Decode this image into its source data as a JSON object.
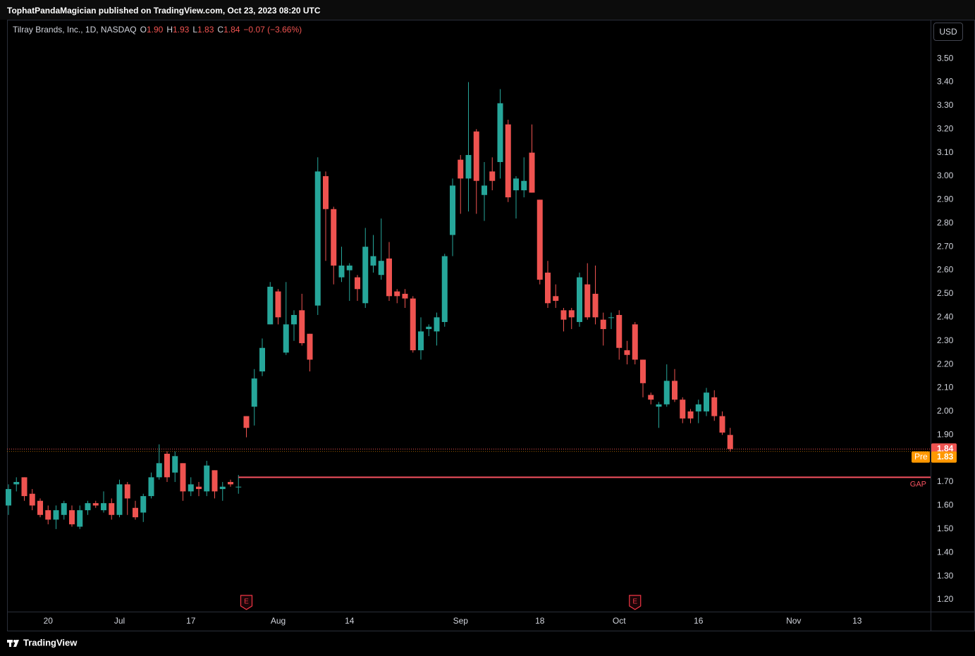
{
  "header": {
    "text": "TophatPandaMagician published on TradingView.com, Oct 23, 2023 08:20 UTC"
  },
  "footer": {
    "brand": "TradingView"
  },
  "chart_data": {
    "type": "candlestick",
    "title": "Tilray Brands, Inc., 1D, NASDAQ",
    "legend": [
      {
        "key": "O",
        "label": "1.90"
      },
      {
        "key": "H",
        "label": "1.93"
      },
      {
        "key": "L",
        "label": "1.83"
      },
      {
        "key": "C",
        "label": "1.84"
      }
    ],
    "change_label": "−0.07 (−3.66%)",
    "currency": "USD",
    "up_color": "#26a69a",
    "down_color": "#ef5350",
    "grid": false,
    "categories": [
      null,
      null,
      null,
      null,
      null,
      "20",
      null,
      null,
      null,
      null,
      null,
      null,
      null,
      null,
      "Jul",
      null,
      null,
      null,
      null,
      null,
      null,
      null,
      null,
      "17",
      null,
      null,
      null,
      null,
      null,
      null,
      null,
      null,
      null,
      null,
      "Aug",
      null,
      null,
      null,
      null,
      null,
      null,
      null,
      null,
      "14",
      null,
      null,
      null,
      null,
      null,
      null,
      null,
      null,
      null,
      null,
      null,
      null,
      null,
      "Sep",
      null,
      null,
      null,
      null,
      null,
      null,
      null,
      null,
      null,
      "18",
      null,
      null,
      null,
      null,
      null,
      null,
      null,
      null,
      null,
      "Oct",
      null,
      null,
      null,
      null,
      null,
      null,
      null,
      null,
      null,
      "16",
      null,
      null,
      null,
      null,
      null,
      null,
      null,
      null,
      null,
      null,
      null,
      "Nov",
      null,
      null,
      null,
      null,
      null,
      null,
      null,
      "13",
      null,
      null,
      null,
      null,
      null,
      null,
      null
    ],
    "open": [
      1.6,
      1.69,
      1.72,
      1.65,
      1.62,
      1.58,
      1.54,
      1.56,
      1.58,
      1.51,
      1.58,
      1.61,
      1.58,
      1.61,
      1.56,
      1.69,
      1.59,
      1.57,
      1.64,
      1.72,
      1.82,
      1.74,
      1.78,
      1.66,
      1.68,
      1.66,
      1.75,
      1.67,
      1.7,
      1.68,
      1.98,
      2.02,
      2.17,
      2.37,
      2.51,
      2.25,
      2.37,
      2.43,
      2.33,
      2.45,
      3.0,
      2.86,
      2.57,
      2.6,
      2.57,
      2.46,
      2.62,
      2.58,
      2.65,
      2.51,
      2.5,
      2.48,
      2.26,
      2.35,
      2.34,
      2.38,
      2.75,
      3.07,
      2.99,
      3.19,
      2.92,
      3.02,
      3.06,
      3.22,
      2.94,
      2.94,
      3.1,
      2.9,
      2.59,
      2.49,
      2.43,
      2.43,
      2.38,
      2.54,
      2.5,
      2.39,
      2.4,
      2.41,
      2.26,
      2.37,
      2.22,
      2.07,
      2.02,
      2.03,
      2.13,
      2.05,
      2.0,
      2.0,
      2.0,
      2.06,
      1.98,
      1.9,
      null,
      null,
      null,
      null,
      null,
      null,
      null,
      null,
      null,
      null,
      null,
      null,
      null,
      null,
      null,
      null,
      null,
      null,
      null,
      null,
      null,
      null,
      null
    ],
    "high": [
      1.69,
      1.72,
      1.72,
      1.67,
      1.63,
      1.6,
      1.6,
      1.62,
      1.6,
      1.6,
      1.62,
      1.62,
      1.66,
      1.63,
      1.71,
      1.7,
      1.62,
      1.65,
      1.74,
      1.86,
      1.83,
      1.83,
      1.78,
      1.72,
      1.7,
      1.79,
      1.75,
      1.7,
      1.71,
      1.73,
      1.98,
      2.18,
      2.31,
      2.55,
      2.52,
      2.55,
      2.43,
      2.5,
      2.33,
      3.08,
      3.02,
      2.87,
      2.7,
      2.63,
      2.58,
      2.78,
      2.75,
      2.82,
      2.72,
      2.52,
      2.52,
      2.49,
      2.4,
      2.37,
      2.42,
      2.67,
      2.99,
      3.09,
      3.4,
      3.2,
      3.06,
      3.08,
      3.37,
      3.24,
      3.0,
      3.08,
      3.22,
      2.9,
      2.64,
      2.54,
      2.44,
      2.44,
      2.59,
      2.63,
      2.62,
      2.42,
      2.42,
      2.43,
      2.3,
      2.38,
      2.22,
      2.08,
      2.04,
      2.2,
      2.18,
      2.06,
      2.01,
      2.05,
      2.1,
      2.09,
      2.0,
      1.93,
      null,
      null,
      null,
      null,
      null,
      null,
      null,
      null,
      null,
      null,
      null,
      null,
      null,
      null,
      null,
      null,
      null,
      null,
      null,
      null,
      null,
      null,
      null
    ],
    "low": [
      1.56,
      1.66,
      1.62,
      1.58,
      1.55,
      1.52,
      1.5,
      1.54,
      1.51,
      1.5,
      1.56,
      1.59,
      1.57,
      1.54,
      1.55,
      1.56,
      1.54,
      1.53,
      1.63,
      1.71,
      1.7,
      1.7,
      1.62,
      1.64,
      1.64,
      1.64,
      1.63,
      1.62,
      1.68,
      1.65,
      1.89,
      1.94,
      2.15,
      2.37,
      2.37,
      2.24,
      2.3,
      2.28,
      2.17,
      2.41,
      2.64,
      2.54,
      2.55,
      2.47,
      2.47,
      2.44,
      2.59,
      2.56,
      2.47,
      2.46,
      2.44,
      2.25,
      2.22,
      2.32,
      2.28,
      2.36,
      2.66,
      2.84,
      2.85,
      2.84,
      2.81,
      2.94,
      2.99,
      2.89,
      2.82,
      2.91,
      2.93,
      2.54,
      2.44,
      2.44,
      2.34,
      2.35,
      2.36,
      2.39,
      2.37,
      2.28,
      2.35,
      2.22,
      2.2,
      2.2,
      2.06,
      2.03,
      1.93,
      2.02,
      2.04,
      1.95,
      1.95,
      1.95,
      1.98,
      1.96,
      1.9,
      1.83,
      null,
      null,
      null,
      null,
      null,
      null,
      null,
      null,
      null,
      null,
      null,
      null,
      null,
      null,
      null,
      null,
      null,
      null,
      null,
      null,
      null,
      null,
      null
    ],
    "close": [
      1.67,
      1.7,
      1.64,
      1.6,
      1.56,
      1.54,
      1.58,
      1.61,
      1.52,
      1.58,
      1.61,
      1.6,
      1.61,
      1.56,
      1.69,
      1.63,
      1.55,
      1.64,
      1.72,
      1.78,
      1.72,
      1.81,
      1.66,
      1.69,
      1.67,
      1.77,
      1.66,
      1.68,
      1.69,
      1.68,
      1.93,
      2.14,
      2.27,
      2.53,
      2.4,
      2.37,
      2.41,
      2.29,
      2.22,
      3.02,
      2.86,
      2.62,
      2.62,
      2.62,
      2.52,
      2.7,
      2.66,
      2.64,
      2.49,
      2.49,
      2.48,
      2.26,
      2.34,
      2.36,
      2.4,
      2.66,
      2.96,
      2.99,
      3.09,
      2.98,
      2.96,
      2.98,
      3.31,
      2.91,
      2.99,
      2.98,
      2.93,
      2.56,
      2.46,
      2.47,
      2.39,
      2.4,
      2.57,
      2.4,
      2.4,
      2.35,
      2.4,
      2.27,
      2.24,
      2.22,
      2.12,
      2.05,
      2.03,
      2.13,
      2.05,
      1.97,
      1.97,
      2.03,
      2.08,
      1.98,
      1.91,
      1.84,
      null,
      null,
      null,
      null,
      null,
      null,
      null,
      null,
      null,
      null,
      null,
      null,
      null,
      null,
      null,
      null,
      null,
      null,
      null,
      null,
      null,
      null,
      null
    ],
    "ylim": [
      1.149,
      3.665
    ],
    "yticks": [
      {
        "value": 1.2,
        "label": "1.20"
      },
      {
        "value": 1.3,
        "label": "1.30"
      },
      {
        "value": 1.4,
        "label": "1.40"
      },
      {
        "value": 1.5,
        "label": "1.50"
      },
      {
        "value": 1.6,
        "label": "1.60"
      },
      {
        "value": 1.7,
        "label": "1.70"
      },
      {
        "value": 1.8,
        "label": "1.80"
      },
      {
        "value": 1.9,
        "label": "1.90"
      },
      {
        "value": 2,
        "label": "2.00"
      },
      {
        "value": 2.1,
        "label": "2.10"
      },
      {
        "value": 2.2,
        "label": "2.20"
      },
      {
        "value": 2.3,
        "label": "2.30"
      },
      {
        "value": 2.4,
        "label": "2.40"
      },
      {
        "value": 2.5,
        "label": "2.50"
      },
      {
        "value": 2.6,
        "label": "2.60"
      },
      {
        "value": 2.7,
        "label": "2.70"
      },
      {
        "value": 2.8,
        "label": "2.80"
      },
      {
        "value": 2.9,
        "label": "2.90"
      },
      {
        "value": 3,
        "label": "3.00"
      },
      {
        "value": 3.1,
        "label": "3.10"
      },
      {
        "value": 3.2,
        "label": "3.20"
      },
      {
        "value": 3.3,
        "label": "3.30"
      },
      {
        "value": 3.4,
        "label": "3.40"
      },
      {
        "value": 3.5,
        "label": "3.50"
      }
    ],
    "pre_market": {
      "label": "Pre",
      "value": 1.83,
      "color": "#ff9800"
    },
    "gap": {
      "label": "GAP",
      "value": 1.72,
      "color": "#f7525f"
    },
    "event_labels": [
      "E",
      "E"
    ]
  }
}
